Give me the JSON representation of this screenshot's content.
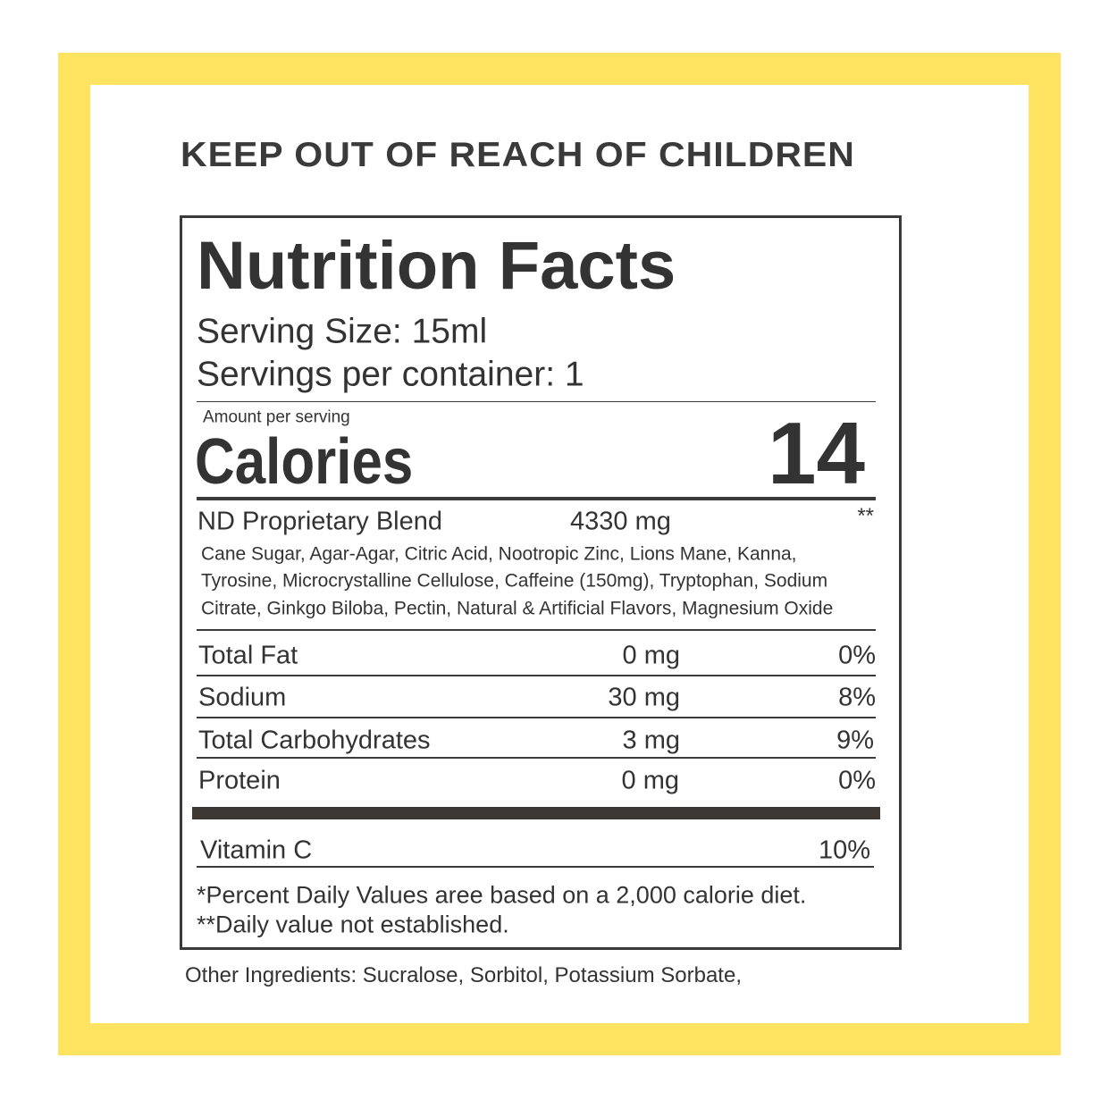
{
  "warning": "KEEP OUT OF REACH OF CHILDREN",
  "label": {
    "title": "Nutrition Facts",
    "serving_size": "Serving Size: 15ml",
    "servings_per_container": "Servings per container: 1",
    "amount_per_serving": "Amount per serving",
    "calories": {
      "label": "Calories",
      "value": 14
    },
    "blend": {
      "name": "ND Proprietary Blend",
      "amount": "4330 mg",
      "daily_value": "**",
      "ingredients": [
        "Cane Sugar, Agar-Agar, Citric Acid, Nootropic Zinc, Lions Mane, Kanna,",
        "Tyrosine, Microcrystalline Cellulose, Caffeine (150mg), Tryptophan, Sodium",
        "Citrate, Ginkgo Biloba, Pectin, Natural & Artificial Flavors, Magnesium Oxide"
      ]
    },
    "nutrients": [
      {
        "name": "Total Fat",
        "amount": "0 mg",
        "daily_value": "0%"
      },
      {
        "name": "Sodium",
        "amount": "30 mg",
        "daily_value": "8%"
      },
      {
        "name": "Total Carbohydrates",
        "amount": "3 mg",
        "daily_value": "9%"
      },
      {
        "name": "Protein",
        "amount": "0 mg",
        "daily_value": "0%"
      }
    ],
    "vitamins": [
      {
        "name": "Vitamin C",
        "daily_value": "10%"
      }
    ],
    "footnotes": [
      "*Percent Daily Values aree based on a 2,000 calorie diet.",
      "**Daily value not established."
    ]
  },
  "other_ingredients": "Other Ingredients: Sucralose, Sorbitol, Potassium Sorbate,"
}
